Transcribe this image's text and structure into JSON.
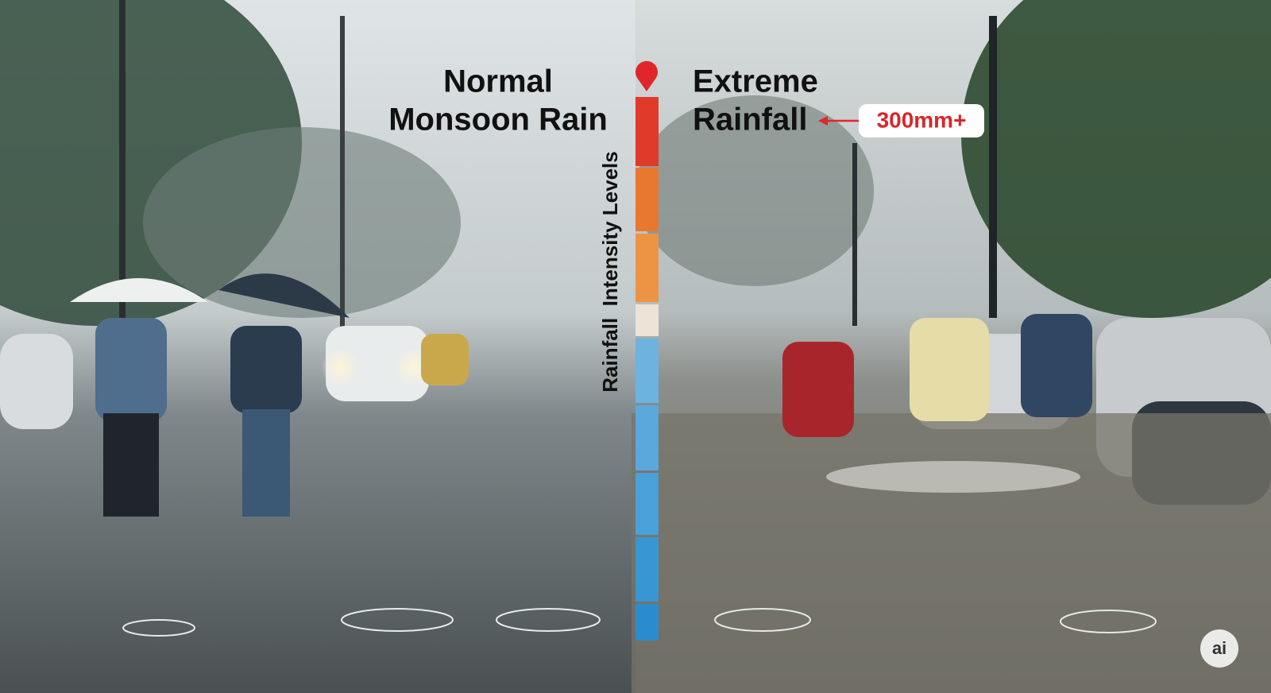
{
  "left_title": [
    "Normal",
    "Monsoon Rain"
  ],
  "right_title": [
    "Extreme",
    "Rainfall"
  ],
  "callout": "300mm+",
  "scale_label": "Rainfall  Intensity Levels",
  "badge": "ai"
}
